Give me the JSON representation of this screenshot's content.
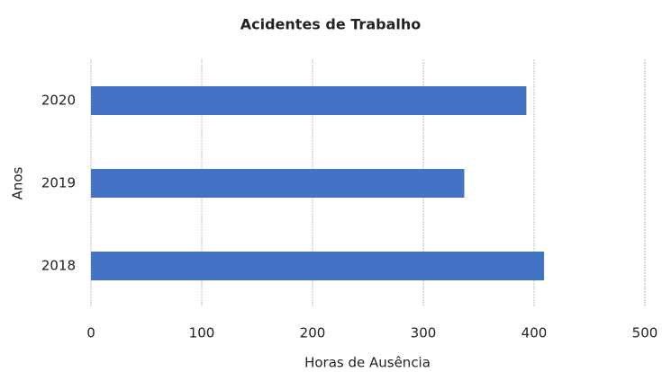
{
  "chart_data": {
    "type": "bar",
    "orientation": "horizontal",
    "title": "Acidentes de Trabalho",
    "xlabel": "Horas de Ausência",
    "ylabel": "Anos",
    "categories": [
      "2018",
      "2019",
      "2020"
    ],
    "values": [
      409,
      337,
      393
    ],
    "color": "#4472c4",
    "xlim": [
      0,
      500
    ],
    "xticks": [
      0,
      100,
      200,
      300,
      400,
      500
    ],
    "grid": true
  }
}
